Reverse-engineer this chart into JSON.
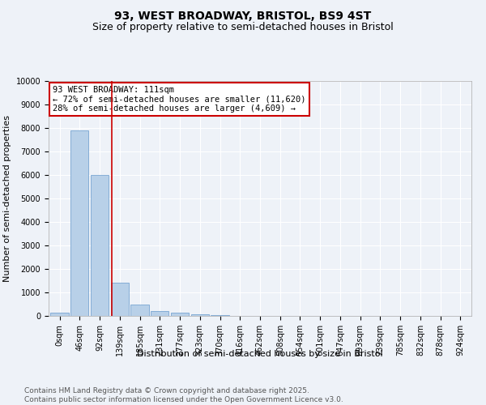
{
  "title1": "93, WEST BROADWAY, BRISTOL, BS9 4ST",
  "title2": "Size of property relative to semi-detached houses in Bristol",
  "xlabel": "Distribution of semi-detached houses by size in Bristol",
  "ylabel": "Number of semi-detached properties",
  "bar_labels": [
    "0sqm",
    "46sqm",
    "92sqm",
    "139sqm",
    "185sqm",
    "231sqm",
    "277sqm",
    "323sqm",
    "370sqm",
    "416sqm",
    "462sqm",
    "508sqm",
    "554sqm",
    "601sqm",
    "647sqm",
    "693sqm",
    "739sqm",
    "785sqm",
    "832sqm",
    "878sqm",
    "924sqm"
  ],
  "bar_values": [
    150,
    7900,
    6000,
    1400,
    480,
    220,
    130,
    70,
    30,
    10,
    5,
    2,
    1,
    0,
    0,
    0,
    0,
    0,
    0,
    0,
    0
  ],
  "bar_color": "#b8d0e8",
  "bar_edge_color": "#6699cc",
  "vline_x": 2.62,
  "vline_color": "#cc0000",
  "annotation_line1": "93 WEST BROADWAY: 111sqm",
  "annotation_line2": "← 72% of semi-detached houses are smaller (11,620)",
  "annotation_line3": "28% of semi-detached houses are larger (4,609) →",
  "annotation_box_color": "#cc0000",
  "ylim": [
    0,
    10000
  ],
  "yticks": [
    0,
    1000,
    2000,
    3000,
    4000,
    5000,
    6000,
    7000,
    8000,
    9000,
    10000
  ],
  "background_color": "#eef2f8",
  "grid_color": "#ffffff",
  "footer_text": "Contains HM Land Registry data © Crown copyright and database right 2025.\nContains public sector information licensed under the Open Government Licence v3.0.",
  "title_fontsize": 10,
  "subtitle_fontsize": 9,
  "axis_label_fontsize": 8,
  "tick_fontsize": 7,
  "annotation_fontsize": 7.5,
  "footer_fontsize": 6.5
}
